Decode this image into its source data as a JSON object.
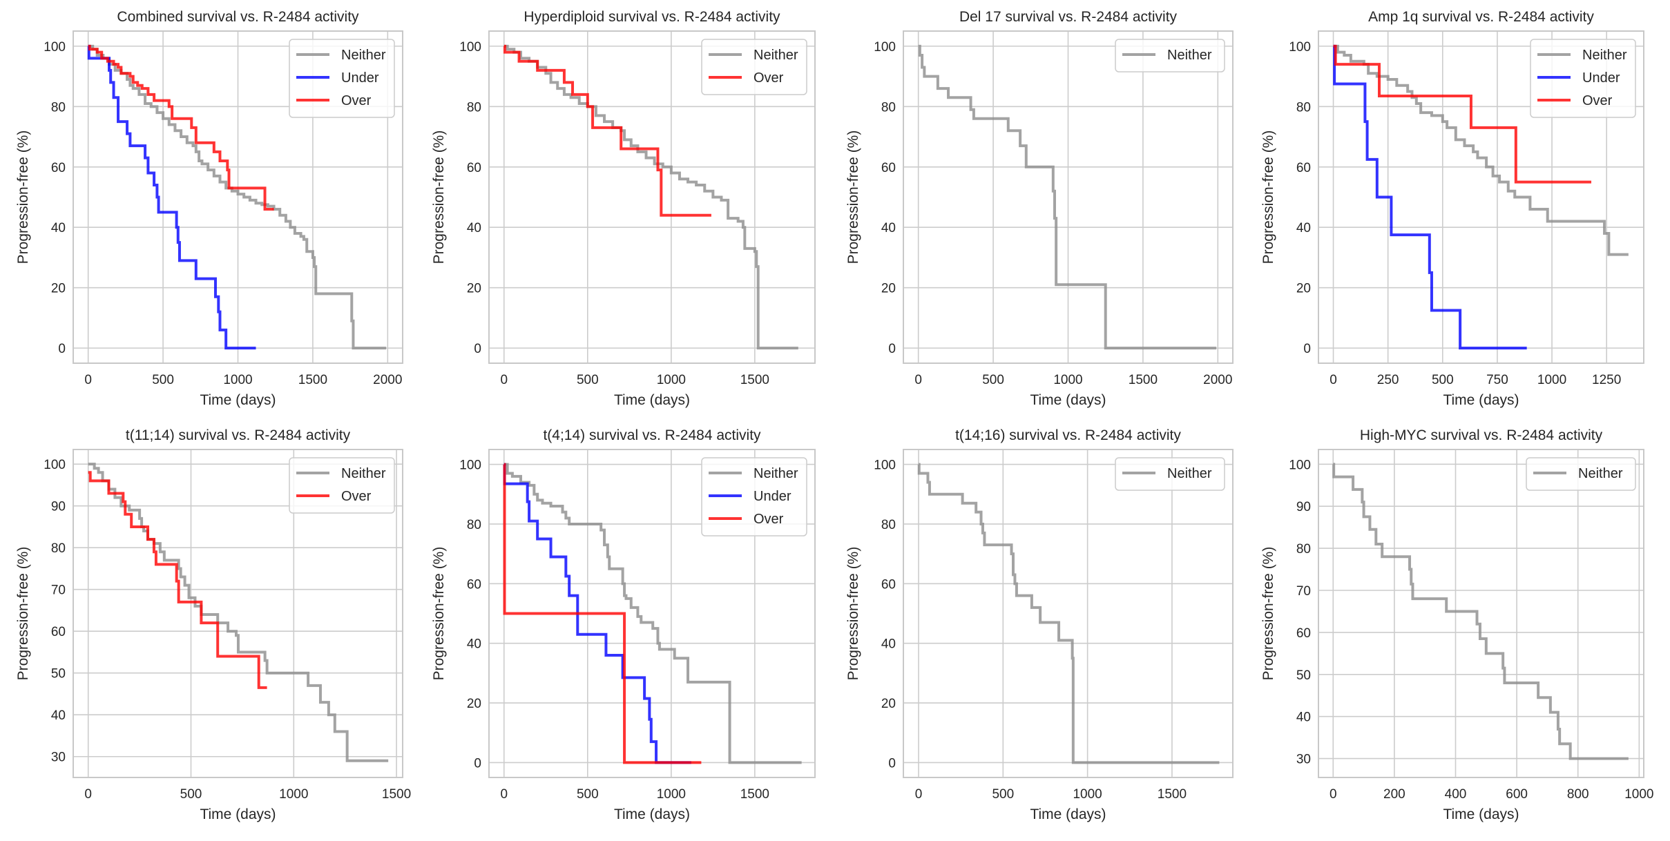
{
  "figure": {
    "colors": {
      "Neither": "#8c8c8c",
      "Under": "#0000ff",
      "Over": "#ff0000",
      "grid": "#cccccc",
      "frame": "#c8c8c8"
    }
  },
  "chart_data": [
    {
      "type": "line",
      "step": "post",
      "title": "Combined survival vs. R-2484 activity",
      "xlabel": "Time (days)",
      "ylabel": "Progression-free (%)",
      "xlim": [
        -100,
        2100
      ],
      "ylim": [
        -5,
        105
      ],
      "xticks": [
        0,
        500,
        1000,
        1500,
        2000
      ],
      "yticks": [
        0,
        20,
        40,
        60,
        80,
        100
      ],
      "grid": true,
      "legend": "top-right",
      "series": [
        {
          "name": "Neither",
          "x": [
            0,
            30,
            60,
            100,
            140,
            180,
            220,
            260,
            280,
            300,
            340,
            380,
            420,
            460,
            500,
            540,
            580,
            620,
            660,
            700,
            720,
            740,
            760,
            800,
            840,
            880,
            920,
            960,
            1000,
            1040,
            1080,
            1120,
            1160,
            1200,
            1240,
            1280,
            1320,
            1350,
            1380,
            1420,
            1440,
            1460,
            1500,
            1510,
            1520,
            1760,
            1770,
            1990
          ],
          "y": [
            100,
            99,
            97,
            96,
            94,
            92,
            91,
            89,
            87,
            86,
            84,
            81,
            80,
            78,
            76,
            74,
            72,
            70,
            68,
            67,
            65,
            62,
            61,
            59,
            57,
            55,
            53,
            52,
            51,
            50,
            49,
            48,
            47.5,
            47,
            46,
            44,
            42,
            40,
            38,
            37,
            36,
            32,
            30,
            27,
            18,
            9,
            0,
            0
          ]
        },
        {
          "name": "Under",
          "x": [
            0,
            5,
            130,
            140,
            150,
            170,
            200,
            260,
            280,
            380,
            400,
            440,
            460,
            470,
            590,
            600,
            610,
            720,
            850,
            870,
            880,
            900,
            920,
            1120
          ],
          "y": [
            100,
            96,
            96,
            92,
            88,
            83,
            75,
            71,
            67,
            63,
            58,
            54,
            50,
            45,
            40,
            35,
            29,
            23,
            17,
            12,
            6,
            6,
            0,
            0
          ]
        },
        {
          "name": "Over",
          "x": [
            0,
            10,
            60,
            90,
            130,
            170,
            200,
            220,
            280,
            300,
            330,
            360,
            400,
            440,
            480,
            540,
            560,
            620,
            690,
            720,
            840,
            880,
            930,
            940,
            1170,
            1180,
            1240
          ],
          "y": [
            100,
            99,
            98,
            96,
            95,
            94,
            93,
            91,
            90,
            88,
            87,
            86,
            84,
            82,
            82,
            80,
            76,
            76,
            73,
            68,
            65,
            62,
            59,
            53,
            53,
            46,
            46
          ]
        }
      ]
    },
    {
      "type": "line",
      "step": "post",
      "title": "Hyperdiploid survival vs. R-2484 activity",
      "xlabel": "Time (days)",
      "ylabel": "Progression-free (%)",
      "xlim": [
        -90,
        1860
      ],
      "ylim": [
        -5,
        105
      ],
      "xticks": [
        0,
        500,
        1000,
        1500
      ],
      "yticks": [
        0,
        20,
        40,
        60,
        80,
        100
      ],
      "grid": true,
      "legend": "top-right",
      "series": [
        {
          "name": "Neither",
          "x": [
            0,
            20,
            60,
            100,
            150,
            200,
            250,
            280,
            320,
            360,
            400,
            450,
            500,
            550,
            600,
            650,
            700,
            720,
            760,
            800,
            850,
            900,
            950,
            1000,
            1050,
            1100,
            1150,
            1200,
            1250,
            1300,
            1340,
            1400,
            1430,
            1440,
            1500,
            1510,
            1520,
            1760
          ],
          "y": [
            100,
            99,
            98,
            96,
            95,
            93,
            91,
            88,
            86,
            84,
            83,
            81,
            80,
            77,
            75,
            73,
            72,
            69,
            67,
            65,
            63,
            61,
            60,
            58,
            56,
            55,
            54,
            52,
            50,
            49,
            43,
            42,
            40,
            33,
            32,
            27,
            0,
            0
          ]
        },
        {
          "name": "Over",
          "x": [
            0,
            5,
            90,
            200,
            360,
            410,
            500,
            530,
            700,
            920,
            940,
            1240
          ],
          "y": [
            100,
            98,
            95,
            92,
            88,
            84,
            80,
            73,
            66,
            59,
            44,
            44
          ]
        }
      ]
    },
    {
      "type": "line",
      "step": "post",
      "title": "Del 17 survival vs. R-2484 activity",
      "xlabel": "Time (days)",
      "ylabel": "Progression-free (%)",
      "xlim": [
        -100,
        2100
      ],
      "ylim": [
        -5,
        105
      ],
      "xticks": [
        0,
        500,
        1000,
        1500,
        2000
      ],
      "yticks": [
        0,
        20,
        40,
        60,
        80,
        100
      ],
      "grid": true,
      "legend": "top-right",
      "series": [
        {
          "name": "Neither",
          "x": [
            0,
            10,
            25,
            40,
            130,
            200,
            350,
            370,
            600,
            680,
            720,
            900,
            910,
            920,
            1250,
            1990
          ],
          "y": [
            100,
            97,
            93,
            90,
            86,
            83,
            79,
            76,
            72,
            67,
            60,
            52,
            43,
            21,
            0,
            0
          ]
        }
      ]
    },
    {
      "type": "line",
      "step": "post",
      "title": "Amp 1q survival vs. R-2484 activity",
      "xlabel": "Time (days)",
      "ylabel": "Progression-free (%)",
      "xlim": [
        -68,
        1420
      ],
      "ylim": [
        -5,
        105
      ],
      "xticks": [
        0,
        250,
        500,
        750,
        1000,
        1250
      ],
      "yticks": [
        0,
        20,
        40,
        60,
        80,
        100
      ],
      "grid": true,
      "legend": "top-right",
      "series": [
        {
          "name": "Neither",
          "x": [
            0,
            20,
            50,
            80,
            140,
            160,
            200,
            250,
            290,
            340,
            360,
            380,
            400,
            450,
            500,
            520,
            560,
            600,
            640,
            660,
            700,
            730,
            760,
            800,
            830,
            900,
            980,
            1240,
            1260,
            1350
          ],
          "y": [
            100,
            98,
            97,
            95,
            94,
            91,
            90,
            89,
            87,
            85,
            83,
            81,
            78,
            77,
            75,
            73,
            69,
            67,
            65,
            63,
            60,
            57,
            55,
            52,
            50,
            46,
            42,
            38,
            31,
            31
          ]
        },
        {
          "name": "Under",
          "x": [
            0,
            5,
            145,
            155,
            200,
            265,
            440,
            450,
            580,
            885
          ],
          "y": [
            100,
            87.5,
            75,
            62.5,
            50,
            37.5,
            25,
            12.5,
            0,
            0
          ]
        },
        {
          "name": "Over",
          "x": [
            0,
            10,
            210,
            630,
            835,
            1180
          ],
          "y": [
            100,
            94,
            83.5,
            73,
            55,
            55
          ]
        }
      ]
    },
    {
      "type": "line",
      "step": "post",
      "title": "t(11;14) survival vs. R-2484 activity",
      "xlabel": "Time (days)",
      "ylabel": "Progression-free (%)",
      "xlim": [
        -73,
        1530
      ],
      "ylim": [
        25,
        103.5
      ],
      "xticks": [
        0,
        500,
        1000,
        1500
      ],
      "yticks": [
        30,
        40,
        50,
        60,
        70,
        80,
        90,
        100
      ],
      "grid": true,
      "legend": "top-right",
      "series": [
        {
          "name": "Neither",
          "x": [
            0,
            30,
            50,
            70,
            100,
            130,
            160,
            200,
            250,
            260,
            270,
            290,
            320,
            350,
            370,
            400,
            440,
            450,
            470,
            490,
            520,
            550,
            570,
            630,
            680,
            720,
            730,
            830,
            860,
            870,
            1070,
            1130,
            1170,
            1200,
            1260,
            1460
          ],
          "y": [
            100,
            99,
            98,
            96,
            94,
            92,
            90,
            89,
            87,
            85,
            84,
            82,
            81,
            79,
            77,
            77,
            75,
            73,
            71,
            68,
            66,
            64,
            64,
            62,
            60,
            59,
            55,
            55,
            53,
            50,
            47,
            43,
            40,
            36,
            29,
            29
          ]
        },
        {
          "name": "Over",
          "x": [
            0,
            10,
            100,
            170,
            180,
            210,
            290,
            320,
            330,
            430,
            440,
            550,
            630,
            830,
            870
          ],
          "y": [
            98,
            96,
            93,
            91,
            88,
            85,
            82,
            79,
            76,
            72,
            67,
            62,
            54,
            46.5,
            46.5
          ]
        }
      ]
    },
    {
      "type": "line",
      "step": "post",
      "title": "t(4;14) survival vs. R-2484 activity",
      "xlabel": "Time (days)",
      "ylabel": "Progression-free (%)",
      "xlim": [
        -90,
        1860
      ],
      "ylim": [
        -5,
        105
      ],
      "xticks": [
        0,
        500,
        1000,
        1500
      ],
      "yticks": [
        0,
        20,
        40,
        60,
        80,
        100
      ],
      "grid": true,
      "legend": "top-right",
      "series": [
        {
          "name": "Neither",
          "x": [
            0,
            20,
            50,
            100,
            150,
            180,
            200,
            230,
            280,
            350,
            370,
            390,
            580,
            600,
            620,
            630,
            710,
            720,
            730,
            760,
            800,
            820,
            840,
            890,
            920,
            930,
            1020,
            1100,
            1350,
            1780
          ],
          "y": [
            100,
            97,
            96,
            94,
            93,
            90,
            88,
            87,
            86,
            84,
            82,
            80,
            78,
            73,
            69,
            65,
            60,
            56,
            55,
            52,
            49,
            47,
            47,
            45,
            40,
            38,
            35,
            27,
            0,
            0
          ]
        },
        {
          "name": "Under",
          "x": [
            0,
            3,
            140,
            150,
            200,
            280,
            370,
            390,
            440,
            610,
            710,
            840,
            870,
            880,
            910,
            1120
          ],
          "y": [
            100,
            93.5,
            87.5,
            81,
            75,
            69,
            62.5,
            56,
            43,
            36,
            28.5,
            21.5,
            14.5,
            7,
            0,
            0
          ]
        },
        {
          "name": "Over",
          "x": [
            0,
            3,
            720,
            1180
          ],
          "y": [
            100,
            50,
            0,
            0
          ]
        }
      ]
    },
    {
      "type": "line",
      "step": "post",
      "title": "t(14;16) survival vs. R-2484 activity",
      "xlabel": "Time (days)",
      "ylabel": "Progression-free (%)",
      "xlim": [
        -90,
        1860
      ],
      "ylim": [
        -5,
        105
      ],
      "xticks": [
        0,
        500,
        1000,
        1500
      ],
      "yticks": [
        0,
        20,
        40,
        60,
        80,
        100
      ],
      "grid": true,
      "legend": "top-right",
      "series": [
        {
          "name": "Neither",
          "x": [
            0,
            3,
            55,
            65,
            260,
            340,
            370,
            380,
            390,
            550,
            560,
            570,
            580,
            590,
            670,
            720,
            830,
            910,
            915,
            1780
          ],
          "y": [
            100,
            97,
            94,
            90,
            87,
            84,
            80,
            77,
            73,
            70,
            63,
            60,
            56,
            56,
            52,
            47,
            41,
            35,
            0,
            0
          ]
        }
      ]
    },
    {
      "type": "line",
      "step": "post",
      "title": "High-MYC survival vs. R-2484 activity",
      "xlabel": "Time (days)",
      "ylabel": "Progression-free (%)",
      "xlim": [
        -48,
        1015
      ],
      "ylim": [
        25.5,
        103.5
      ],
      "xticks": [
        0,
        200,
        400,
        600,
        800,
        1000
      ],
      "yticks": [
        30,
        40,
        50,
        60,
        70,
        80,
        90,
        100
      ],
      "grid": true,
      "legend": "top-right",
      "series": [
        {
          "name": "Neither",
          "x": [
            0,
            2,
            65,
            95,
            100,
            120,
            140,
            160,
            250,
            255,
            260,
            370,
            470,
            480,
            500,
            555,
            560,
            670,
            710,
            735,
            740,
            775,
            965
          ],
          "y": [
            100,
            97,
            94,
            91,
            87.5,
            84.5,
            81,
            78,
            75,
            71.5,
            68,
            65,
            62,
            58.5,
            55,
            51.5,
            48,
            44.5,
            41,
            37,
            33.5,
            30,
            30
          ]
        }
      ]
    }
  ]
}
